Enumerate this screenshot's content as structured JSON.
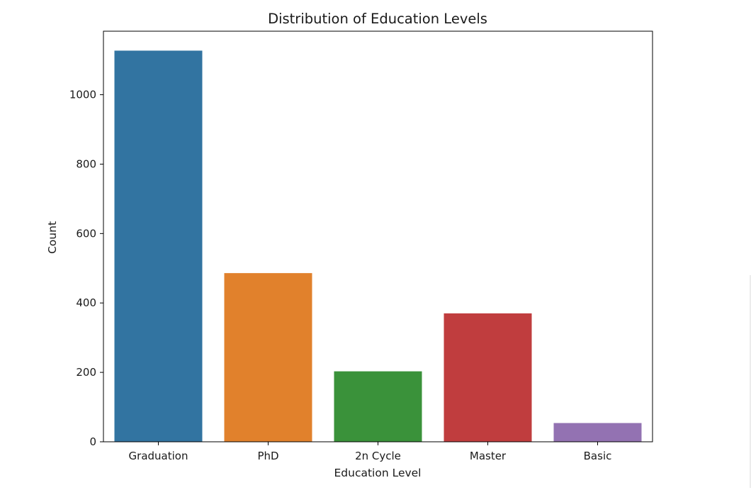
{
  "chart_data": {
    "type": "bar",
    "title": "Distribution of Education Levels",
    "xlabel": "Education Level",
    "ylabel": "Count",
    "categories": [
      "Graduation",
      "PhD",
      "2n Cycle",
      "Master",
      "Basic"
    ],
    "values": [
      1127,
      486,
      203,
      370,
      54
    ],
    "colors": [
      "#3274a1",
      "#e1812c",
      "#3a923a",
      "#c03d3e",
      "#9372b2"
    ],
    "ylim": [
      0,
      1183
    ],
    "yticks": [
      0,
      200,
      400,
      600,
      800,
      1000
    ],
    "grid": false,
    "legend": "none"
  }
}
